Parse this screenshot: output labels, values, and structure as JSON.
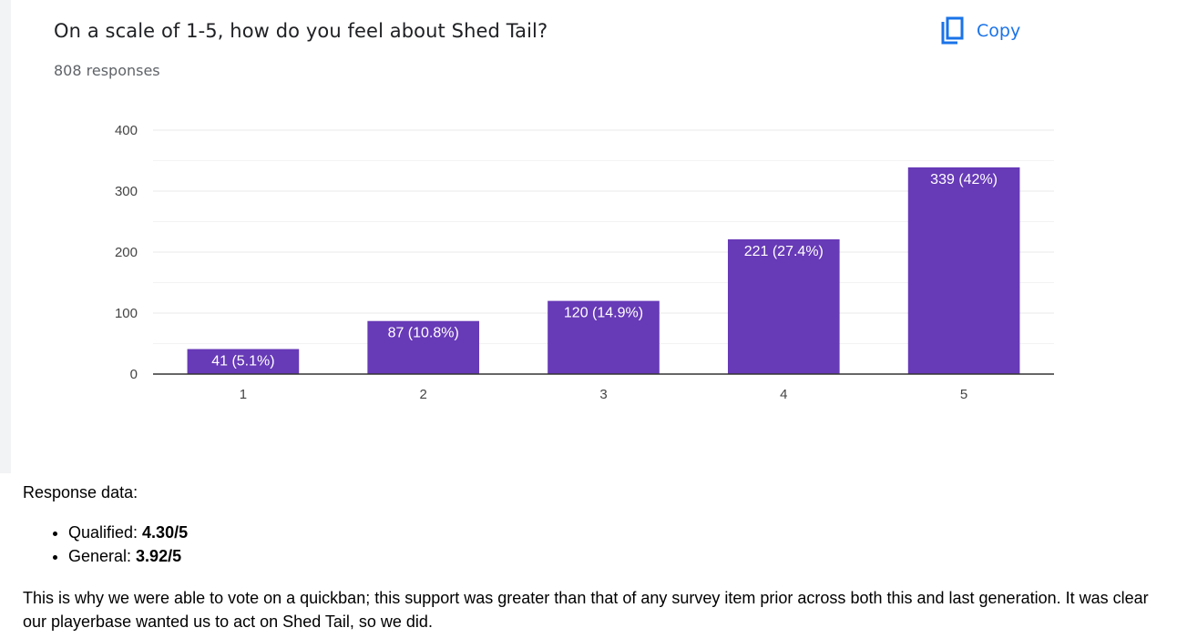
{
  "question": {
    "title": "On a scale of 1-5, how do you feel about Shed Tail?",
    "responses": "808 responses"
  },
  "copy_button": {
    "label": "Copy",
    "icon": "copy-icon",
    "color": "#1a73e8"
  },
  "chart_data": {
    "type": "bar",
    "categories": [
      "1",
      "2",
      "3",
      "4",
      "5"
    ],
    "values": [
      41,
      87,
      120,
      221,
      339
    ],
    "data_labels": [
      "41 (5.1%)",
      "87 (10.8%)",
      "120 (14.9%)",
      "221 (27.4%)",
      "339 (42%)"
    ],
    "yticks": [
      0,
      100,
      200,
      300,
      400
    ],
    "ylim": [
      0,
      400
    ],
    "title": "",
    "xlabel": "",
    "ylabel": "",
    "bar_color": "#673ab7",
    "grid": true
  },
  "post": {
    "intro": "Response data:",
    "items": [
      {
        "label": "Qualified: ",
        "value": "4.30/5"
      },
      {
        "label": "General: ",
        "value": "3.92/5"
      }
    ],
    "closing": "This is why we were able to vote on a quickban; this support was greater than that of any survey item prior across both this and last generation. It was clear our playerbase wanted us to act on Shed Tail, so we did."
  }
}
